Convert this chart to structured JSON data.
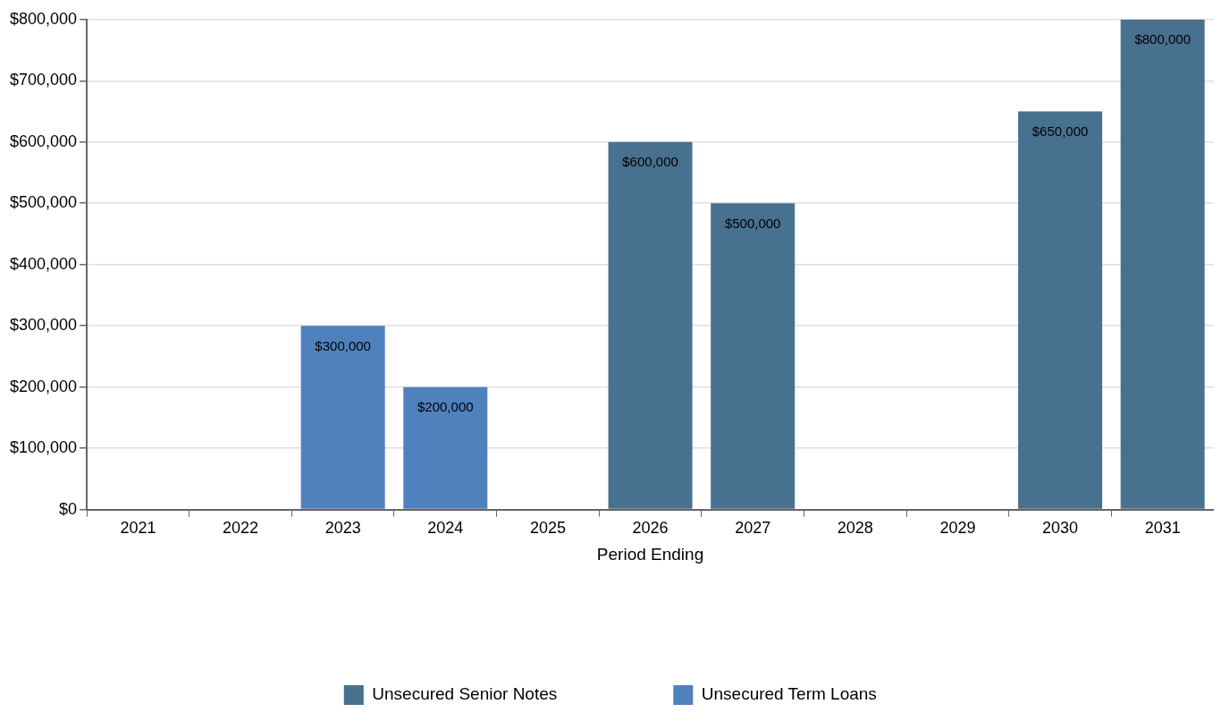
{
  "chart_data": {
    "type": "bar",
    "xlabel": "Period Ending",
    "categories": [
      "2021",
      "2022",
      "2023",
      "2024",
      "2025",
      "2026",
      "2027",
      "2028",
      "2029",
      "2030",
      "2031"
    ],
    "series": [
      {
        "name": "Unsecured Senior Notes",
        "color": "#48708f",
        "values": [
          null,
          null,
          null,
          null,
          null,
          600000,
          500000,
          null,
          null,
          650000,
          800000
        ],
        "value_labels": [
          null,
          null,
          null,
          null,
          null,
          "$600,000",
          "$500,000",
          null,
          null,
          "$650,000",
          "$800,000"
        ]
      },
      {
        "name": "Unsecured Term Loans",
        "color": "#4f81bd",
        "values": [
          null,
          null,
          300000,
          200000,
          null,
          null,
          null,
          null,
          null,
          null,
          null
        ],
        "value_labels": [
          null,
          null,
          "$300,000",
          "$200,000",
          null,
          null,
          null,
          null,
          null,
          null,
          null
        ]
      }
    ],
    "stacked": true,
    "ylim": [
      0,
      800000
    ],
    "yticks": [
      {
        "value": 0,
        "label": "$0"
      },
      {
        "value": 100000,
        "label": "$100,000"
      },
      {
        "value": 200000,
        "label": "$200,000"
      },
      {
        "value": 300000,
        "label": "$300,000"
      },
      {
        "value": 400000,
        "label": "$400,000"
      },
      {
        "value": 500000,
        "label": "$500,000"
      },
      {
        "value": 600000,
        "label": "$600,000"
      },
      {
        "value": 700000,
        "label": "$700,000"
      },
      {
        "value": 800000,
        "label": "$800,000"
      }
    ],
    "grid": "y",
    "legend": "bottom"
  }
}
